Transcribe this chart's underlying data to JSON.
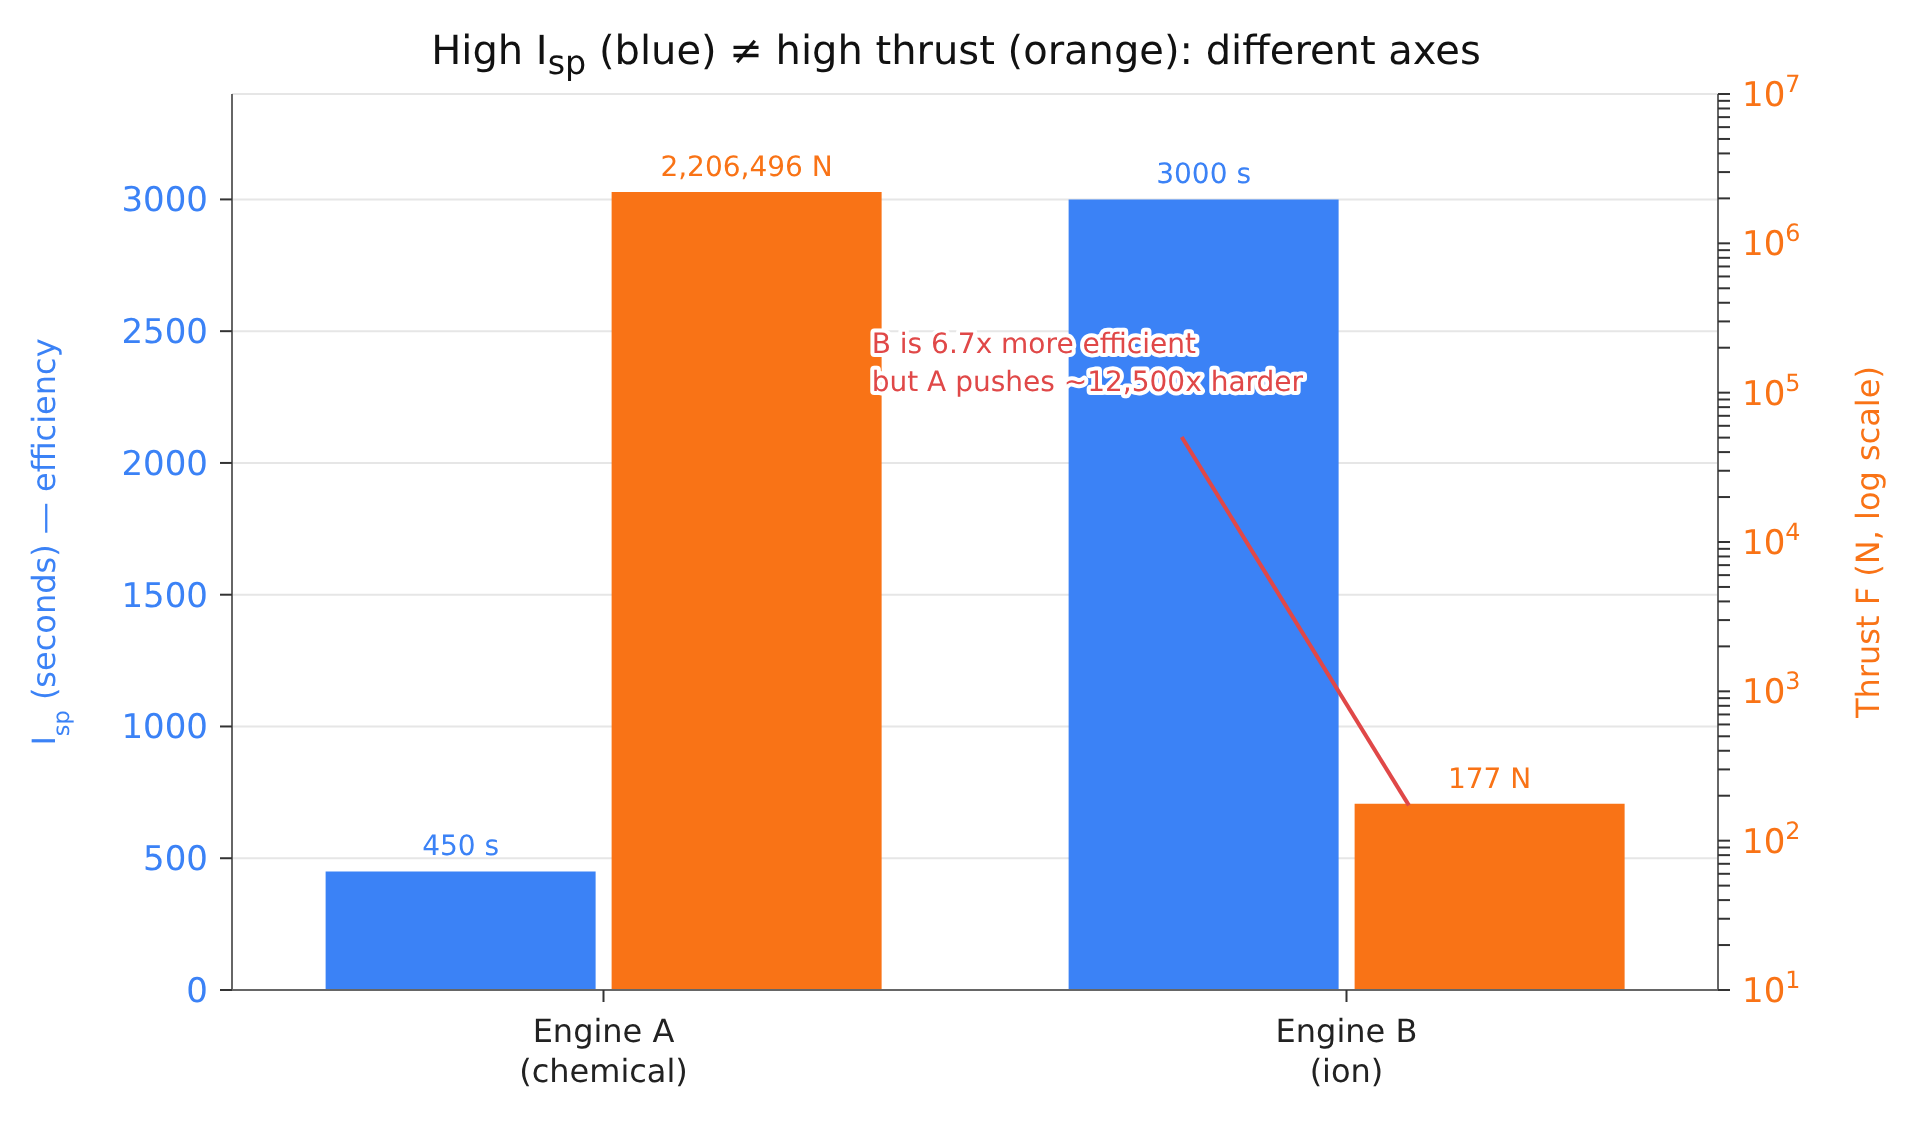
{
  "chart_data": {
    "type": "bar",
    "title": "High I$_{sp}$ (blue) ≠ high thrust (orange): different axes",
    "ylabel": "I$_{sp}$  (seconds) — efficiency",
    "y2label": "Thrust F  (N, log scale)",
    "categories": [
      "Engine A\n(chemical)",
      "Engine B\n(ion)"
    ],
    "series": [
      {
        "color": "#3b82f6",
        "values": [
          450,
          3000
        ],
        "value_labels": [
          "450 s",
          "3000 s"
        ]
      },
      {
        "color": "#f97316",
        "values": [
          2206496,
          177
        ],
        "axis": "y2",
        "value_labels": [
          "2,206,496 N",
          "177 N"
        ]
      }
    ],
    "ylim": [
      0,
      3400
    ],
    "yticks": [
      0,
      500,
      1000,
      1500,
      2000,
      2500,
      3000
    ],
    "log": "y2",
    "y2lim": [
      10,
      10000000
    ],
    "y2ticks": [
      {
        "value": 10,
        "label": "10$^{1}$"
      },
      {
        "value": 20,
        "label": null
      },
      {
        "value": 30,
        "label": null
      },
      {
        "value": 40,
        "label": null
      },
      {
        "value": 50,
        "label": null
      },
      {
        "value": 60,
        "label": null
      },
      {
        "value": 70,
        "label": null
      },
      {
        "value": 80,
        "label": null
      },
      {
        "value": 90,
        "label": null
      },
      {
        "value": 100,
        "label": "10$^{2}$"
      },
      {
        "value": 200,
        "label": null
      },
      {
        "value": 300,
        "label": null
      },
      {
        "value": 400,
        "label": null
      },
      {
        "value": 500,
        "label": null
      },
      {
        "value": 600,
        "label": null
      },
      {
        "value": 700,
        "label": null
      },
      {
        "value": 800,
        "label": null
      },
      {
        "value": 900,
        "label": null
      },
      {
        "value": 1000,
        "label": "10$^{3}$"
      },
      {
        "value": 2000,
        "label": null
      },
      {
        "value": 3000,
        "label": null
      },
      {
        "value": 4000,
        "label": null
      },
      {
        "value": 5000,
        "label": null
      },
      {
        "value": 6000,
        "label": null
      },
      {
        "value": 7000,
        "label": null
      },
      {
        "value": 8000,
        "label": null
      },
      {
        "value": 9000,
        "label": null
      },
      {
        "value": 10000,
        "label": "10$^{4}$"
      },
      {
        "value": 20000,
        "label": null
      },
      {
        "value": 30000,
        "label": null
      },
      {
        "value": 40000,
        "label": null
      },
      {
        "value": 50000,
        "label": null
      },
      {
        "value": 60000,
        "label": null
      },
      {
        "value": 70000,
        "label": null
      },
      {
        "value": 80000,
        "label": null
      },
      {
        "value": 90000,
        "label": null
      },
      {
        "value": 100000,
        "label": "10$^{5}$"
      },
      {
        "value": 200000,
        "label": null
      },
      {
        "value": 300000,
        "label": null
      },
      {
        "value": 400000,
        "label": null
      },
      {
        "value": 500000,
        "label": null
      },
      {
        "value": 600000,
        "label": null
      },
      {
        "value": 700000,
        "label": null
      },
      {
        "value": 800000,
        "label": null
      },
      {
        "value": 900000,
        "label": null
      },
      {
        "value": 1000000,
        "label": "10$^{6}$"
      },
      {
        "value": 2000000,
        "label": null
      },
      {
        "value": 3000000,
        "label": null
      },
      {
        "value": 4000000,
        "label": null
      },
      {
        "value": 5000000,
        "label": null
      },
      {
        "value": 6000000,
        "label": null
      },
      {
        "value": 7000000,
        "label": null
      },
      {
        "value": 8000000,
        "label": null
      },
      {
        "value": 9000000,
        "label": null
      },
      {
        "value": 10000000,
        "label": "10$^{7}$"
      }
    ],
    "grid": "y",
    "annotations": [
      "B is 6.7x more efficient\nbut A pushes ~12,500x harder"
    ]
  }
}
